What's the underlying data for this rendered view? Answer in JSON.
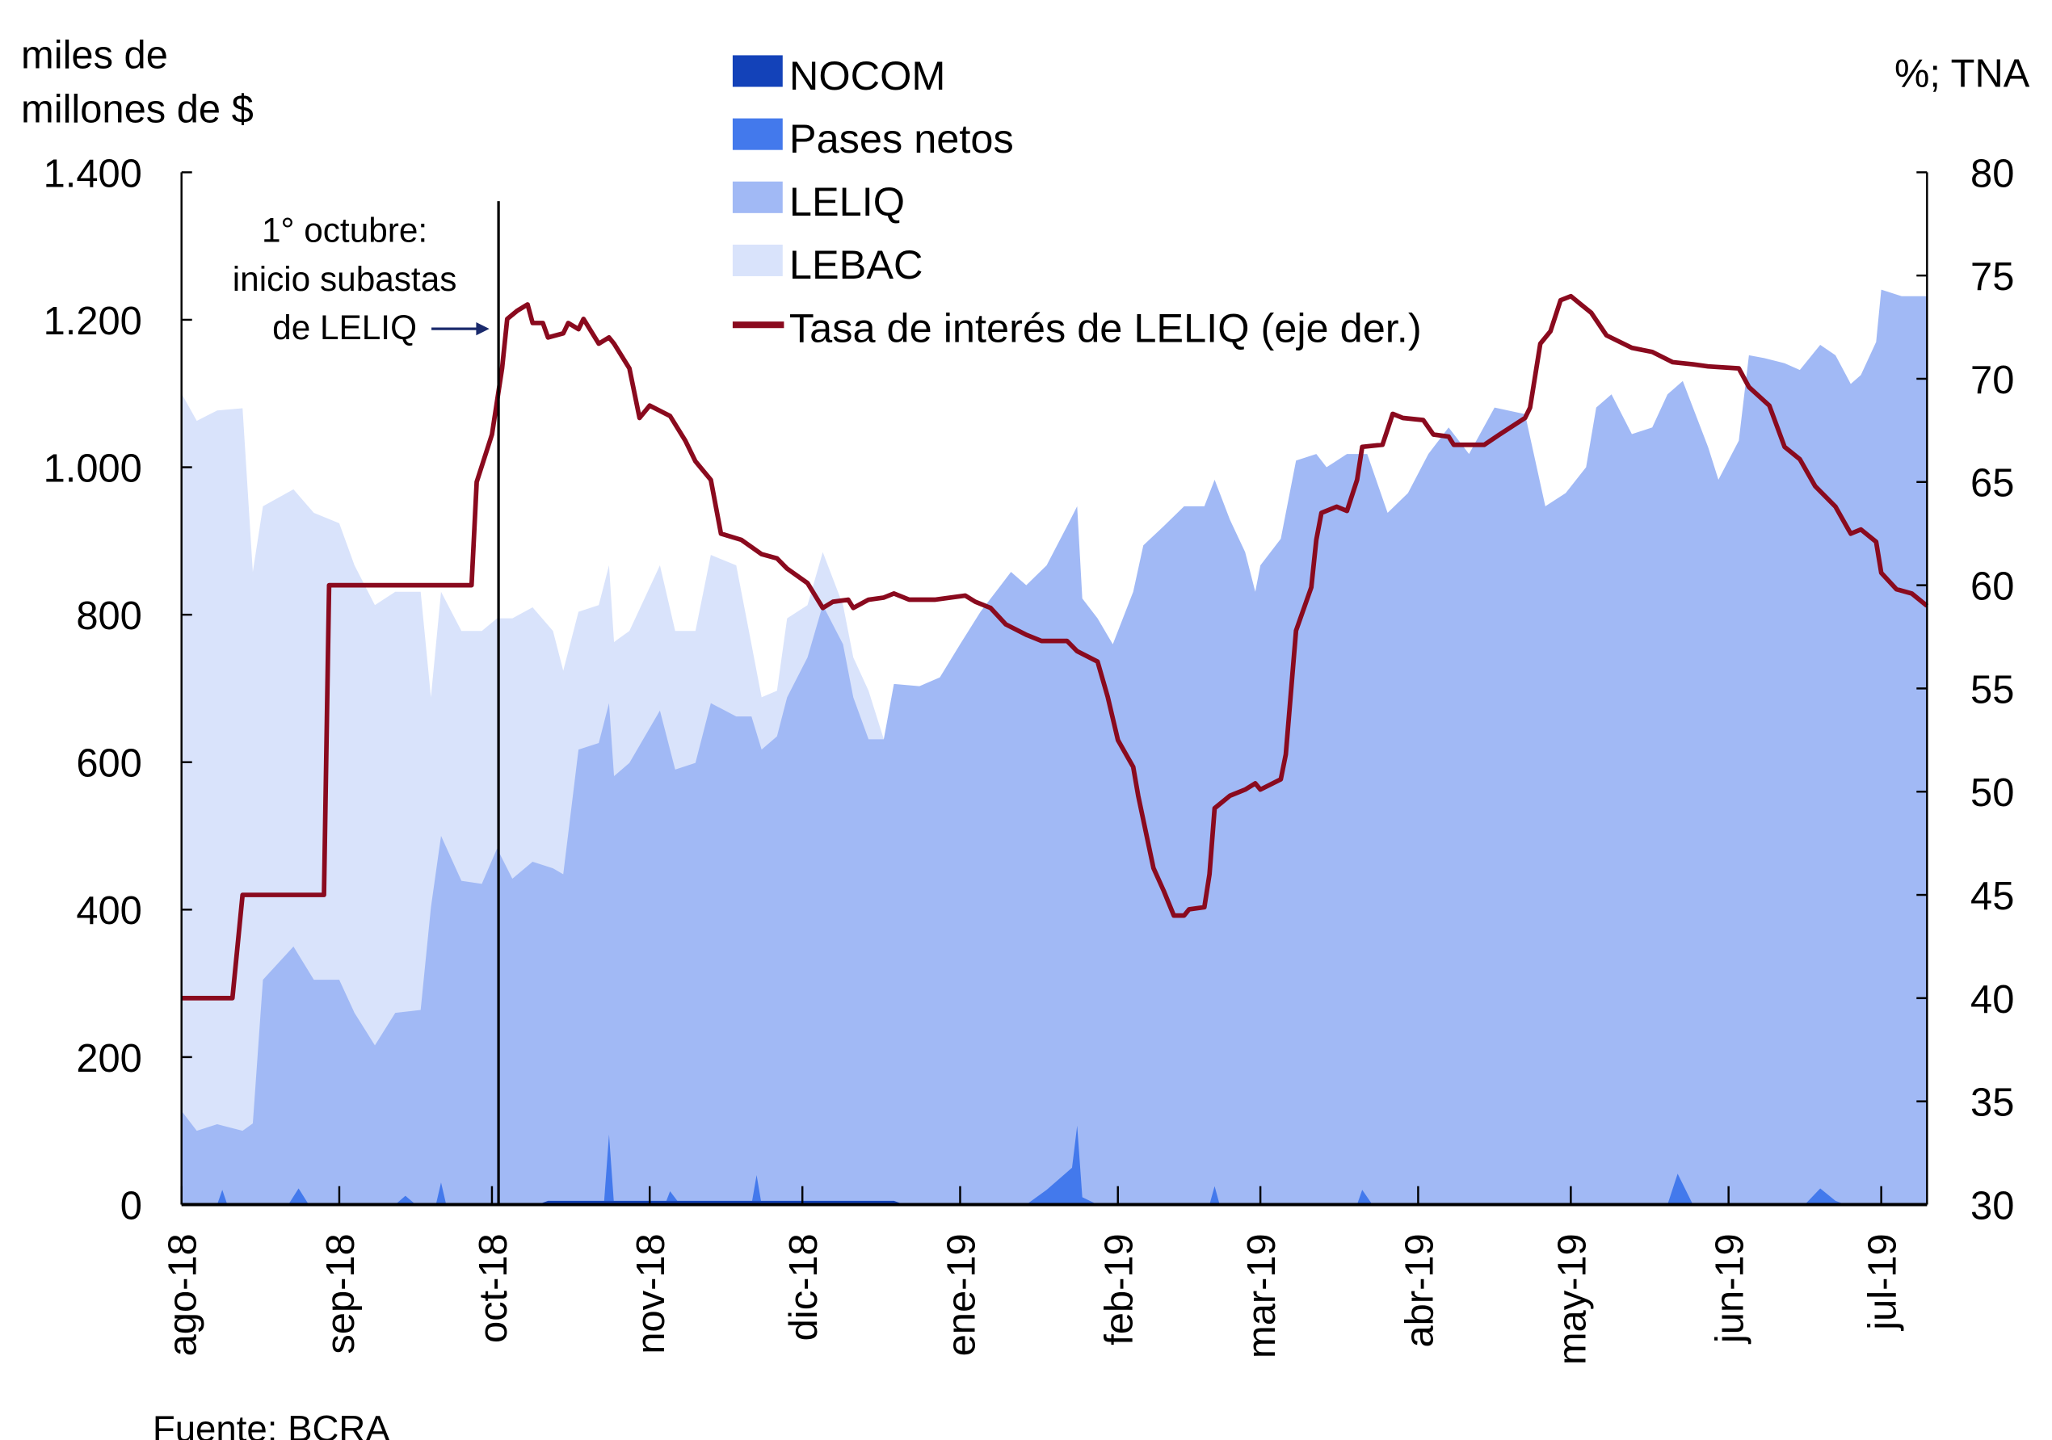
{
  "chart_data": {
    "type": "area",
    "left_axis": {
      "label_line1": "miles de",
      "label_line2": "millones de $",
      "range": [
        0,
        1400
      ],
      "ticks": [
        0,
        200,
        400,
        600,
        800,
        1000,
        1200,
        1400
      ],
      "tick_labels": [
        "0",
        "200",
        "400",
        "600",
        "800",
        "1.000",
        "1.200",
        "1.400"
      ]
    },
    "right_axis": {
      "label": "%; TNA",
      "range": [
        30,
        80
      ],
      "ticks": [
        30,
        35,
        40,
        45,
        50,
        55,
        60,
        65,
        70,
        75,
        80
      ],
      "tick_labels": [
        "30",
        "35",
        "40",
        "45",
        "50",
        "55",
        "60",
        "65",
        "70",
        "75",
        "80"
      ]
    },
    "x_axis": {
      "unit": "days since 1-ago-18",
      "range": [
        0,
        343
      ],
      "months": [
        {
          "label": "ago-18",
          "day": 0
        },
        {
          "label": "sep-18",
          "day": 31
        },
        {
          "label": "oct-18",
          "day": 61
        },
        {
          "label": "nov-18",
          "day": 92
        },
        {
          "label": "dic-18",
          "day": 122
        },
        {
          "label": "ene-19",
          "day": 153
        },
        {
          "label": "feb-19",
          "day": 184
        },
        {
          "label": "mar-19",
          "day": 212
        },
        {
          "label": "abr-19",
          "day": 243
        },
        {
          "label": "may-19",
          "day": 273
        },
        {
          "label": "jun-19",
          "day": 304
        },
        {
          "label": "jul-19",
          "day": 334
        }
      ]
    },
    "legend": {
      "placement": "top-center",
      "entries": [
        {
          "key": "nocom",
          "label": "NOCOM",
          "color": "#1342b9",
          "kind": "area"
        },
        {
          "key": "pases",
          "label": "Pases netos",
          "color": "#4379ec",
          "kind": "area"
        },
        {
          "key": "leliq",
          "label": "LELIQ",
          "color": "#a1b9f5",
          "kind": "area"
        },
        {
          "key": "lebac",
          "label": "LEBAC",
          "color": "#d9e3fb",
          "kind": "area"
        },
        {
          "key": "rate",
          "label": "Tasa de interés de LELIQ (eje der.)",
          "color": "#8a0a1e",
          "kind": "line"
        }
      ]
    },
    "annotation": {
      "line1": "1° octubre:",
      "line2": "inicio subastas",
      "line3": "de LELIQ",
      "day": 61
    },
    "source": "Fuente: BCRA",
    "series": {
      "lebac_plus_leliq": [
        [
          0,
          1100
        ],
        [
          3,
          1063
        ],
        [
          7,
          1077
        ],
        [
          12,
          1080
        ],
        [
          14,
          858
        ],
        [
          16,
          947
        ],
        [
          22,
          970
        ],
        [
          26,
          938
        ],
        [
          31,
          924
        ],
        [
          34,
          867
        ],
        [
          38,
          813
        ],
        [
          42,
          831
        ],
        [
          47,
          831
        ],
        [
          49,
          688
        ],
        [
          51,
          831
        ],
        [
          55,
          778
        ],
        [
          59,
          778
        ],
        [
          62,
          795
        ],
        [
          65,
          795
        ],
        [
          69,
          810
        ],
        [
          73,
          778
        ],
        [
          75,
          724
        ],
        [
          78,
          804
        ],
        [
          82,
          813
        ],
        [
          84,
          867
        ],
        [
          85,
          763
        ],
        [
          88,
          778
        ],
        [
          94,
          867
        ],
        [
          97,
          778
        ],
        [
          101,
          778
        ],
        [
          104,
          881
        ],
        [
          109,
          867
        ],
        [
          112,
          760
        ],
        [
          114,
          688
        ],
        [
          117,
          697
        ],
        [
          119,
          795
        ],
        [
          123,
          813
        ],
        [
          126,
          885
        ],
        [
          130,
          813
        ],
        [
          132,
          742
        ],
        [
          135,
          697
        ],
        [
          138,
          631
        ],
        [
          140,
          706
        ]
      ],
      "leliq": [
        [
          0,
          127
        ],
        [
          3,
          100
        ],
        [
          7,
          109
        ],
        [
          12,
          100
        ],
        [
          14,
          110
        ],
        [
          16,
          305
        ],
        [
          22,
          350
        ],
        [
          26,
          305
        ],
        [
          31,
          305
        ],
        [
          34,
          260
        ],
        [
          38,
          216
        ],
        [
          42,
          260
        ],
        [
          47,
          264
        ],
        [
          49,
          403
        ],
        [
          51,
          500
        ],
        [
          55,
          439
        ],
        [
          59,
          435
        ],
        [
          62,
          483
        ],
        [
          65,
          442
        ],
        [
          69,
          465
        ],
        [
          73,
          456
        ],
        [
          75,
          448
        ],
        [
          78,
          617
        ],
        [
          82,
          626
        ],
        [
          84,
          680
        ],
        [
          85,
          581
        ],
        [
          88,
          599
        ],
        [
          94,
          670
        ],
        [
          97,
          590
        ],
        [
          101,
          599
        ],
        [
          104,
          680
        ],
        [
          109,
          662
        ],
        [
          112,
          662
        ],
        [
          114,
          617
        ],
        [
          117,
          635
        ],
        [
          119,
          688
        ],
        [
          123,
          742
        ],
        [
          126,
          813
        ],
        [
          130,
          760
        ],
        [
          132,
          688
        ],
        [
          135,
          631
        ],
        [
          138,
          631
        ],
        [
          140,
          706
        ],
        [
          145,
          703
        ],
        [
          149,
          715
        ],
        [
          153,
          760
        ],
        [
          157,
          804
        ],
        [
          161,
          840
        ],
        [
          163,
          858
        ],
        [
          166,
          840
        ],
        [
          170,
          867
        ],
        [
          174,
          920
        ],
        [
          176,
          947
        ],
        [
          177,
          822
        ],
        [
          180,
          795
        ],
        [
          183,
          760
        ],
        [
          187,
          831
        ],
        [
          189,
          894
        ],
        [
          193,
          920
        ],
        [
          197,
          947
        ],
        [
          201,
          947
        ],
        [
          203,
          983
        ],
        [
          206,
          929
        ],
        [
          209,
          885
        ],
        [
          211,
          831
        ],
        [
          212,
          867
        ],
        [
          216,
          903
        ],
        [
          219,
          1009
        ],
        [
          223,
          1018
        ],
        [
          225,
          1000
        ],
        [
          229,
          1018
        ],
        [
          233,
          1018
        ],
        [
          237,
          938
        ],
        [
          241,
          965
        ],
        [
          245,
          1018
        ],
        [
          249,
          1054
        ],
        [
          253,
          1018
        ],
        [
          258,
          1081
        ],
        [
          264,
          1072
        ],
        [
          268,
          947
        ],
        [
          272,
          965
        ],
        [
          276,
          1000
        ],
        [
          278,
          1081
        ],
        [
          281,
          1099
        ],
        [
          285,
          1045
        ],
        [
          289,
          1054
        ],
        [
          292,
          1099
        ],
        [
          295,
          1117
        ],
        [
          300,
          1027
        ],
        [
          302,
          983
        ],
        [
          306,
          1036
        ],
        [
          308,
          1152
        ],
        [
          311,
          1148
        ],
        [
          315,
          1141
        ],
        [
          318,
          1132
        ],
        [
          322,
          1166
        ],
        [
          325,
          1152
        ],
        [
          328,
          1113
        ],
        [
          330,
          1125
        ],
        [
          333,
          1170
        ],
        [
          334,
          1241
        ],
        [
          338,
          1232
        ],
        [
          343,
          1232
        ]
      ],
      "pases": [
        [
          0,
          0
        ],
        [
          7,
          0
        ],
        [
          8,
          20
        ],
        [
          9,
          0
        ],
        [
          21,
          0
        ],
        [
          23,
          22
        ],
        [
          25,
          0
        ],
        [
          42,
          0
        ],
        [
          44,
          12
        ],
        [
          46,
          0
        ],
        [
          50,
          0
        ],
        [
          51,
          30
        ],
        [
          52,
          0
        ],
        [
          83,
          0
        ],
        [
          84,
          95
        ],
        [
          85,
          0
        ],
        [
          95,
          0
        ],
        [
          96,
          18
        ],
        [
          98,
          0
        ],
        [
          112,
          0
        ],
        [
          113,
          40
        ],
        [
          114,
          0
        ],
        [
          166,
          0
        ],
        [
          170,
          20
        ],
        [
          175,
          50
        ],
        [
          176,
          107
        ],
        [
          177,
          10
        ],
        [
          180,
          0
        ],
        [
          202,
          0
        ],
        [
          203,
          25
        ],
        [
          204,
          0
        ],
        [
          231,
          0
        ],
        [
          232,
          20
        ],
        [
          234,
          0
        ],
        [
          292,
          0
        ],
        [
          294,
          42
        ],
        [
          297,
          0
        ],
        [
          319,
          0
        ],
        [
          322,
          22
        ],
        [
          325,
          5
        ],
        [
          327,
          0
        ],
        [
          343,
          0
        ]
      ],
      "nocom": [
        [
          0,
          0
        ],
        [
          70,
          0
        ],
        [
          72,
          5
        ],
        [
          140,
          5
        ],
        [
          142,
          0
        ],
        [
          343,
          0
        ]
      ],
      "rate": [
        [
          0,
          40
        ],
        [
          10,
          40
        ],
        [
          12,
          45
        ],
        [
          28,
          45
        ],
        [
          29,
          60
        ],
        [
          57,
          60
        ],
        [
          58,
          65
        ],
        [
          61,
          67.3
        ],
        [
          63,
          70.5
        ],
        [
          64,
          72.9
        ],
        [
          66,
          73.3
        ],
        [
          68,
          73.6
        ],
        [
          69,
          72.7
        ],
        [
          71,
          72.7
        ],
        [
          72,
          72
        ],
        [
          75,
          72.2
        ],
        [
          76,
          72.7
        ],
        [
          78,
          72.4
        ],
        [
          79,
          72.9
        ],
        [
          82,
          71.7
        ],
        [
          84,
          72
        ],
        [
          85,
          71.7
        ],
        [
          88,
          70.5
        ],
        [
          90,
          68.1
        ],
        [
          92,
          68.7
        ],
        [
          96,
          68.2
        ],
        [
          99,
          67
        ],
        [
          101,
          66
        ],
        [
          104,
          65.1
        ],
        [
          106,
          62.5
        ],
        [
          110,
          62.2
        ],
        [
          114,
          61.5
        ],
        [
          117,
          61.3
        ],
        [
          119,
          60.8
        ],
        [
          123,
          60.1
        ],
        [
          126,
          58.9
        ],
        [
          128,
          59.2
        ],
        [
          131,
          59.3
        ],
        [
          132,
          58.9
        ],
        [
          135,
          59.3
        ],
        [
          138,
          59.4
        ],
        [
          140,
          59.6
        ],
        [
          143,
          59.3
        ],
        [
          148,
          59.3
        ],
        [
          154,
          59.5
        ],
        [
          156,
          59.2
        ],
        [
          159,
          58.9
        ],
        [
          162,
          58.1
        ],
        [
          166,
          57.6
        ],
        [
          169,
          57.3
        ],
        [
          174,
          57.3
        ],
        [
          176,
          56.8
        ],
        [
          180,
          56.3
        ],
        [
          182,
          54.6
        ],
        [
          184,
          52.5
        ],
        [
          187,
          51.2
        ],
        [
          188,
          49.8
        ],
        [
          191,
          46.3
        ],
        [
          193,
          45.2
        ],
        [
          195,
          44
        ],
        [
          197,
          44
        ],
        [
          198,
          44.3
        ],
        [
          201,
          44.4
        ],
        [
          202,
          46
        ],
        [
          203,
          49.2
        ],
        [
          206,
          49.8
        ],
        [
          209,
          50.1
        ],
        [
          211,
          50.4
        ],
        [
          212,
          50.1
        ],
        [
          216,
          50.6
        ],
        [
          217,
          51.8
        ],
        [
          219,
          57.8
        ],
        [
          222,
          59.9
        ],
        [
          223,
          62.2
        ],
        [
          224,
          63.5
        ],
        [
          227,
          63.8
        ],
        [
          229,
          63.6
        ],
        [
          231,
          65.1
        ],
        [
          232,
          66.7
        ],
        [
          236,
          66.8
        ],
        [
          238,
          68.3
        ],
        [
          240,
          68.1
        ],
        [
          244,
          68
        ],
        [
          246,
          67.3
        ],
        [
          249,
          67.2
        ],
        [
          250,
          66.8
        ],
        [
          256,
          66.8
        ],
        [
          259,
          67.3
        ],
        [
          264,
          68.1
        ],
        [
          265,
          68.6
        ],
        [
          267,
          71.7
        ],
        [
          269,
          72.3
        ],
        [
          271,
          73.8
        ],
        [
          273,
          74
        ],
        [
          275,
          73.6
        ],
        [
          277,
          73.2
        ],
        [
          280,
          72.1
        ],
        [
          285,
          71.5
        ],
        [
          289,
          71.3
        ],
        [
          293,
          70.8
        ],
        [
          297,
          70.7
        ],
        [
          300,
          70.6
        ],
        [
          306,
          70.5
        ],
        [
          308,
          69.6
        ],
        [
          312,
          68.7
        ],
        [
          315,
          66.7
        ],
        [
          318,
          66.1
        ],
        [
          321,
          64.8
        ],
        [
          325,
          63.8
        ],
        [
          328,
          62.5
        ],
        [
          330,
          62.7
        ],
        [
          333,
          62.1
        ],
        [
          334,
          60.6
        ],
        [
          337,
          59.8
        ],
        [
          340,
          59.6
        ],
        [
          343,
          59
        ]
      ]
    }
  }
}
